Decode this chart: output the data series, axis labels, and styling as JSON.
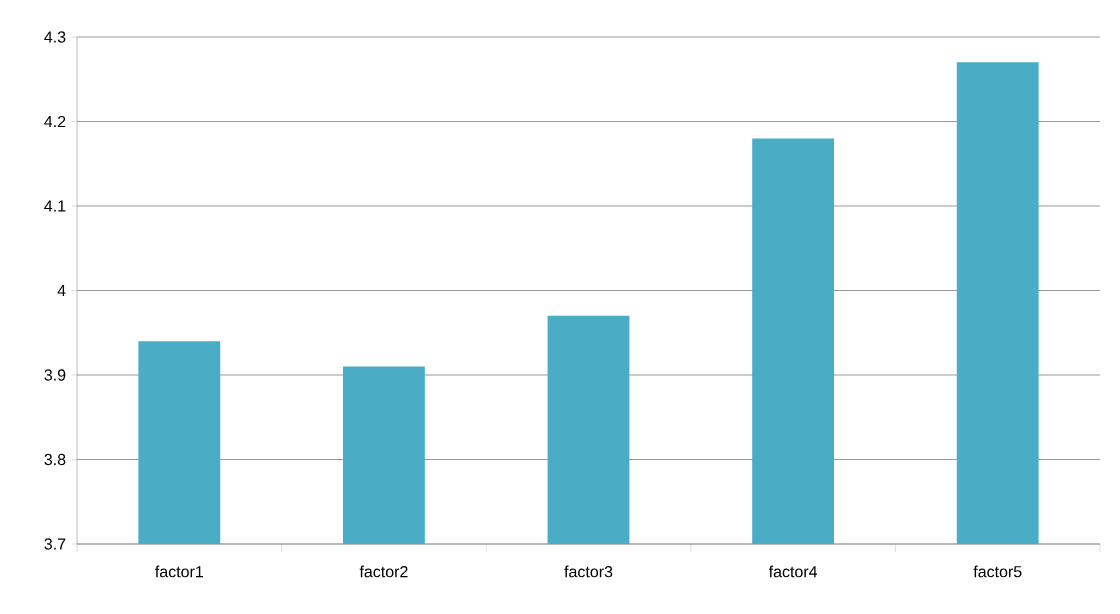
{
  "chart_data": {
    "type": "bar",
    "categories": [
      "factor1",
      "factor2",
      "factor3",
      "factor4",
      "factor5"
    ],
    "values": [
      3.94,
      3.91,
      3.97,
      4.18,
      4.27
    ],
    "color": "#4bacc6",
    "ylim": [
      3.7,
      4.3
    ],
    "yticks": [
      3.7,
      3.8,
      3.9,
      4,
      4.1,
      4.2,
      4.3
    ],
    "grid": "y"
  }
}
